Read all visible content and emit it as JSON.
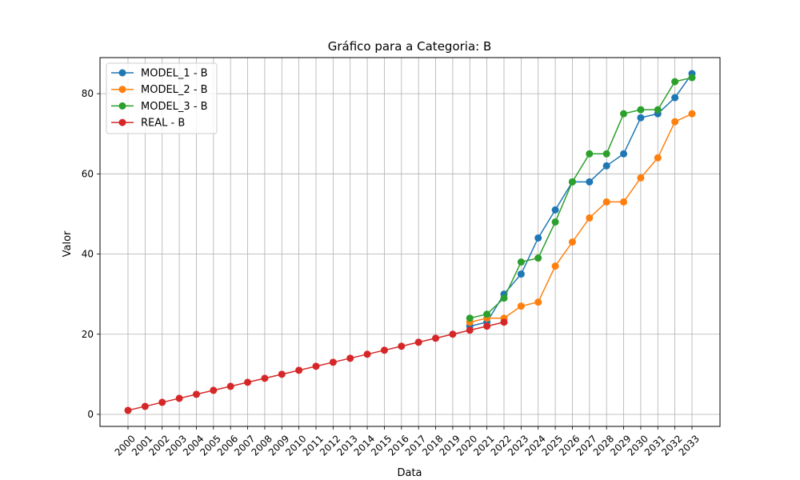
{
  "chart_data": {
    "type": "line",
    "title": "Gráfico para a Categoria: B",
    "xlabel": "Data",
    "ylabel": "Valor",
    "x": [
      "2000",
      "2001",
      "2002",
      "2003",
      "2004",
      "2005",
      "2006",
      "2007",
      "2008",
      "2009",
      "2010",
      "2011",
      "2012",
      "2013",
      "2014",
      "2015",
      "2016",
      "2017",
      "2018",
      "2019",
      "2020",
      "2021",
      "2022",
      "2023",
      "2024",
      "2025",
      "2026",
      "2027",
      "2028",
      "2029",
      "2030",
      "2031",
      "2032",
      "2033"
    ],
    "ylim": [
      -3,
      89
    ],
    "yticks": [
      0,
      20,
      40,
      60,
      80
    ],
    "grid": true,
    "legend_position": "top-left",
    "series": [
      {
        "name": "MODEL_1 - B",
        "color": "#1f77b4",
        "points": [
          [
            "2020",
            22
          ],
          [
            "2021",
            23
          ],
          [
            "2022",
            30
          ],
          [
            "2023",
            35
          ],
          [
            "2024",
            44
          ],
          [
            "2025",
            51
          ],
          [
            "2026",
            58
          ],
          [
            "2027",
            58
          ],
          [
            "2028",
            62
          ],
          [
            "2029",
            65
          ],
          [
            "2030",
            74
          ],
          [
            "2031",
            75
          ],
          [
            "2032",
            79
          ],
          [
            "2033",
            85
          ]
        ]
      },
      {
        "name": "MODEL_2 - B",
        "color": "#ff7f0e",
        "points": [
          [
            "2020",
            23
          ],
          [
            "2021",
            24
          ],
          [
            "2022",
            24
          ],
          [
            "2023",
            27
          ],
          [
            "2024",
            28
          ],
          [
            "2025",
            37
          ],
          [
            "2026",
            43
          ],
          [
            "2027",
            49
          ],
          [
            "2028",
            53
          ],
          [
            "2029",
            53
          ],
          [
            "2030",
            59
          ],
          [
            "2031",
            64
          ],
          [
            "2032",
            73
          ],
          [
            "2033",
            75
          ]
        ]
      },
      {
        "name": "MODEL_3 - B",
        "color": "#2ca02c",
        "points": [
          [
            "2020",
            24
          ],
          [
            "2021",
            25
          ],
          [
            "2022",
            29
          ],
          [
            "2023",
            38
          ],
          [
            "2024",
            39
          ],
          [
            "2025",
            48
          ],
          [
            "2026",
            58
          ],
          [
            "2027",
            65
          ],
          [
            "2028",
            65
          ],
          [
            "2029",
            75
          ],
          [
            "2030",
            76
          ],
          [
            "2031",
            76
          ],
          [
            "2032",
            83
          ],
          [
            "2033",
            84
          ]
        ]
      },
      {
        "name": "REAL - B",
        "color": "#d62728",
        "points": [
          [
            "2000",
            1
          ],
          [
            "2001",
            2
          ],
          [
            "2002",
            3
          ],
          [
            "2003",
            4
          ],
          [
            "2004",
            5
          ],
          [
            "2005",
            6
          ],
          [
            "2006",
            7
          ],
          [
            "2007",
            8
          ],
          [
            "2008",
            9
          ],
          [
            "2009",
            10
          ],
          [
            "2010",
            11
          ],
          [
            "2011",
            12
          ],
          [
            "2012",
            13
          ],
          [
            "2013",
            14
          ],
          [
            "2014",
            15
          ],
          [
            "2015",
            16
          ],
          [
            "2016",
            17
          ],
          [
            "2017",
            18
          ],
          [
            "2018",
            19
          ],
          [
            "2019",
            20
          ],
          [
            "2020",
            21
          ],
          [
            "2021",
            22
          ],
          [
            "2022",
            23
          ]
        ]
      }
    ]
  }
}
